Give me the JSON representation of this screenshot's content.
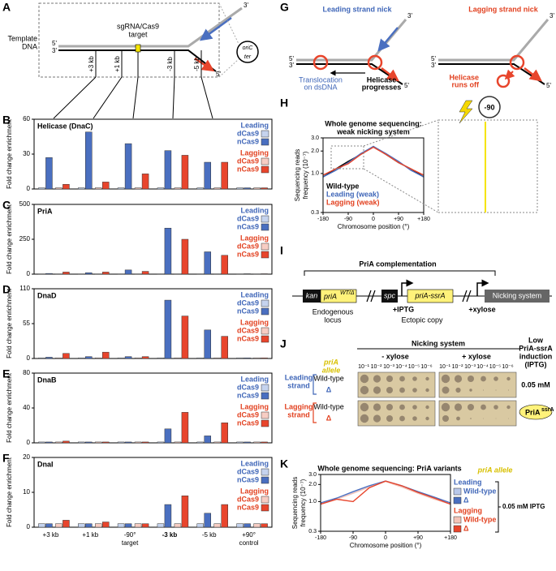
{
  "chart_data": [
    {
      "type": "bar",
      "panel": "B",
      "title": "Helicase (DnaC)",
      "y_label": "Fold change enrichment",
      "categories": [
        null,
        null,
        null,
        null,
        null,
        null
      ],
      "ylim": [
        0,
        60
      ],
      "yticks": [
        0,
        30,
        60
      ],
      "legend_groups": [
        {
          "name": "Leading",
          "color": "#3f66b8"
        },
        {
          "name": "Lagging",
          "color": "#e2401f"
        }
      ],
      "series": [
        {
          "name": "dCas9",
          "color": "#c5d3ee",
          "values": [
            1,
            1,
            1,
            1,
            1,
            1
          ]
        },
        {
          "name": "nCas9",
          "color": "#4a6fc0",
          "values": [
            27,
            49,
            39,
            33,
            23,
            1
          ]
        },
        {
          "name": "dCas9",
          "color": "#f7cdc3",
          "values": [
            1,
            1,
            1,
            1,
            1,
            1
          ]
        },
        {
          "name": "nCas9",
          "color": "#e8452c",
          "values": [
            4,
            6,
            13,
            29,
            23,
            1
          ]
        }
      ]
    },
    {
      "type": "bar",
      "panel": "C",
      "title": "PriA",
      "y_label": "Fold change enrichment",
      "categories": [
        null,
        null,
        null,
        null,
        null,
        null
      ],
      "ylim": [
        0,
        500
      ],
      "yticks": [
        0,
        250,
        500
      ],
      "legend_groups": [
        {
          "name": "Leading",
          "color": "#3f66b8"
        },
        {
          "name": "Lagging",
          "color": "#e2401f"
        }
      ],
      "series": [
        {
          "name": "dCas9",
          "color": "#c5d3ee",
          "values": [
            2,
            2,
            2,
            2,
            2,
            2
          ]
        },
        {
          "name": "nCas9",
          "color": "#4a6fc0",
          "values": [
            5,
            10,
            30,
            330,
            160,
            3
          ]
        },
        {
          "name": "dCas9",
          "color": "#f7cdc3",
          "values": [
            2,
            2,
            2,
            2,
            2,
            2
          ]
        },
        {
          "name": "nCas9",
          "color": "#e8452c",
          "values": [
            15,
            15,
            20,
            250,
            135,
            3
          ]
        }
      ]
    },
    {
      "type": "bar",
      "panel": "D",
      "title": "DnaD",
      "y_label": "Fold change enrichment",
      "categories": [
        null,
        null,
        null,
        null,
        null,
        null
      ],
      "ylim": [
        0,
        110
      ],
      "yticks": [
        0,
        55,
        110
      ],
      "legend_groups": [
        {
          "name": "Leading",
          "color": "#3f66b8"
        },
        {
          "name": "Lagging",
          "color": "#e2401f"
        }
      ],
      "series": [
        {
          "name": "dCas9",
          "color": "#c5d3ee",
          "values": [
            1,
            1,
            1,
            1,
            1,
            1
          ]
        },
        {
          "name": "nCas9",
          "color": "#4a6fc0",
          "values": [
            2,
            3,
            3,
            92,
            45,
            1
          ]
        },
        {
          "name": "dCas9",
          "color": "#f7cdc3",
          "values": [
            1,
            1,
            1,
            1,
            1,
            1
          ]
        },
        {
          "name": "nCas9",
          "color": "#e8452c",
          "values": [
            8,
            10,
            3,
            67,
            35,
            1
          ]
        }
      ]
    },
    {
      "type": "bar",
      "panel": "E",
      "title": "DnaB",
      "y_label": "Fold change enrichment",
      "categories": [
        null,
        null,
        null,
        null,
        null,
        null
      ],
      "ylim": [
        0,
        80
      ],
      "yticks": [
        0,
        40,
        80
      ],
      "legend_groups": [
        {
          "name": "Leading",
          "color": "#3f66b8"
        },
        {
          "name": "Lagging",
          "color": "#e2401f"
        }
      ],
      "series": [
        {
          "name": "dCas9",
          "color": "#c5d3ee",
          "values": [
            1,
            1,
            1,
            1,
            1,
            1
          ]
        },
        {
          "name": "nCas9",
          "color": "#4a6fc0",
          "values": [
            1,
            1,
            1,
            16,
            8,
            1
          ]
        },
        {
          "name": "dCas9",
          "color": "#f7cdc3",
          "values": [
            1,
            1,
            1,
            1,
            1,
            1
          ]
        },
        {
          "name": "nCas9",
          "color": "#e8452c",
          "values": [
            2,
            1,
            1,
            35,
            23,
            1
          ]
        }
      ]
    },
    {
      "type": "bar",
      "panel": "F",
      "title": "DnaI",
      "y_label": "Fold change enrichment",
      "categories": [
        "+3 kb",
        "+1 kb",
        "-90°",
        "-3 kb",
        "-5 kb",
        "+90°"
      ],
      "category_notes": [
        null,
        null,
        "target",
        null,
        null,
        "control"
      ],
      "ylim": [
        0,
        20
      ],
      "yticks": [
        0,
        10,
        20
      ],
      "legend_groups": [
        {
          "name": "Leading",
          "color": "#3f66b8"
        },
        {
          "name": "Lagging",
          "color": "#e2401f"
        }
      ],
      "series": [
        {
          "name": "dCas9",
          "color": "#c5d3ee",
          "values": [
            1,
            1,
            1,
            1,
            1,
            1
          ]
        },
        {
          "name": "nCas9",
          "color": "#4a6fc0",
          "values": [
            1,
            1,
            1,
            6.5,
            4,
            1
          ]
        },
        {
          "name": "dCas9",
          "color": "#f7cdc3",
          "values": [
            1,
            1,
            1,
            1,
            1,
            1
          ]
        },
        {
          "name": "nCas9",
          "color": "#e8452c",
          "values": [
            2,
            1.5,
            1,
            9,
            6.5,
            1
          ]
        }
      ]
    },
    {
      "type": "line",
      "panel": "H",
      "title": "Whole genome sequencing:",
      "subtitle": "weak nicking system",
      "y_label": [
        "Sequencing reads",
        "frequency (10⁻⁷)"
      ],
      "x_label": "Chromosome position (°)",
      "log_y": true,
      "ylim": [
        0.3,
        3
      ],
      "yticks": [
        {
          "value": 3,
          "label": "3.0"
        },
        {
          "value": 2,
          "label": "2.0"
        },
        {
          "value": 1,
          "label": "1.0"
        },
        0.3
      ],
      "xlim": [
        -180,
        180
      ],
      "xticks": [
        -180,
        -90,
        0,
        {
          "value": 90,
          "label": "+90"
        },
        {
          "value": 180,
          "label": "+180"
        }
      ],
      "inset_label": "-90",
      "x": [
        -180,
        -135,
        -90,
        -45,
        0,
        45,
        90,
        135,
        180
      ],
      "series": [
        {
          "name": "Wild-type",
          "color": "#000000",
          "values": [
            0.9,
            1.15,
            1.45,
            1.8,
            2.3,
            1.8,
            1.4,
            1.15,
            0.9
          ]
        },
        {
          "name": "Leading (weak)",
          "color": "#4a6fc0",
          "values": [
            0.9,
            1.1,
            1.4,
            1.85,
            2.3,
            1.85,
            1.45,
            1.1,
            0.9
          ]
        },
        {
          "name": "Lagging (weak)",
          "color": "#e8452c",
          "values": [
            0.95,
            1.15,
            1.35,
            1.8,
            2.25,
            1.8,
            1.4,
            1.15,
            0.95
          ]
        }
      ]
    },
    {
      "type": "line",
      "panel": "K",
      "title": "Whole genome sequencing: PriA variants",
      "y_label": [
        "Sequencing reads",
        "frequency (10⁻⁷)"
      ],
      "x_label": "Chromosome position (°)",
      "log_y": true,
      "ylim": [
        0.3,
        3
      ],
      "yticks": [
        {
          "value": 3,
          "label": "3.0"
        },
        {
          "value": 2,
          "label": "2.0"
        },
        {
          "value": 1,
          "label": "1.0"
        },
        0.3
      ],
      "xlim": [
        -180,
        180
      ],
      "xticks": [
        -180,
        -90,
        0,
        {
          "value": 90,
          "label": "+90"
        },
        {
          "value": 180,
          "label": "+180"
        }
      ],
      "legend_title": "priA allele",
      "annotation": "0.05 mM IPTG",
      "legend_groups": [
        {
          "name": "Leading",
          "color": "#3f66b8"
        },
        {
          "name": "Lagging",
          "color": "#e2401f"
        }
      ],
      "x": [
        -180,
        -135,
        -90,
        -45,
        0,
        45,
        90,
        135,
        180
      ],
      "series": [
        {
          "name": "Wild-type",
          "color": "#b9c8ea",
          "values": [
            0.9,
            1.15,
            1.45,
            1.85,
            2.3,
            1.85,
            1.45,
            1.15,
            0.9
          ]
        },
        {
          "name": "Δ",
          "color": "#4a6fc0",
          "values": [
            0.95,
            1.15,
            1.5,
            1.9,
            2.3,
            1.9,
            1.5,
            1.2,
            0.95
          ]
        },
        {
          "name": "Wild-type",
          "color": "#f4c4b8",
          "values": [
            0.9,
            1.1,
            1.4,
            1.8,
            2.25,
            1.8,
            1.4,
            1.1,
            0.9
          ]
        },
        {
          "name": "Δ",
          "color": "#e8452c",
          "values": [
            0.9,
            1.1,
            1.0,
            1.75,
            2.3,
            1.9,
            1.45,
            1.15,
            0.9
          ]
        }
      ]
    }
  ],
  "panel_a": {
    "panel": "A",
    "target": [
      "sgRNA/Cas9",
      "target"
    ],
    "template": [
      "Template",
      "DNA"
    ],
    "ends": [
      "5'",
      "3'",
      "3'",
      "5'"
    ],
    "plasmid": [
      "oriC",
      "ter"
    ],
    "sites": [
      "+3 kb",
      "+1 kb",
      "-3 kb",
      "-5 kb"
    ]
  },
  "panel_g": {
    "panel": "G",
    "left_title": "Leading strand nick",
    "right_title": "Lagging strand nick",
    "ends": [
      "5'",
      "3'",
      "3'",
      "5'"
    ],
    "translocation": [
      "Translocation",
      "on dsDNA"
    ],
    "progresses": [
      "Helicase",
      "progresses"
    ],
    "runs_off": [
      "Helicase",
      "runs off"
    ]
  },
  "panel_i": {
    "panel": "I",
    "title": "PriA complementation",
    "kan": "kan",
    "pria": "priA",
    "pria_sup": "WT/Δ",
    "spc": "spc",
    "ssra": "priA-ssrA",
    "nicking": "Nicking system",
    "iptg": "+IPTG",
    "xylose": "+xylose",
    "endogenous": [
      "Endogenous",
      "locus"
    ],
    "ectopic": "Ectopic copy"
  },
  "panel_j": {
    "panel": "J",
    "title": "Nicking system",
    "minus": "- xylose",
    "plus": "+ xylose",
    "dilutions": [
      "10⁻¹",
      "10⁻²",
      "10⁻³",
      "10⁻⁴",
      "10⁻⁵",
      "10⁻⁶"
    ],
    "induction": [
      "Low",
      "PriA-ssrA",
      "induction",
      "(IPTG)"
    ],
    "allele": [
      "priA",
      "allele"
    ],
    "leading": [
      "Leading",
      "strand"
    ],
    "lagging": [
      "Lagging",
      "strand"
    ],
    "wt": "Wild-type",
    "delta": "Δ",
    "dose": "0.05 mM",
    "badge": "PriA",
    "badge_sup": "ssrA"
  }
}
